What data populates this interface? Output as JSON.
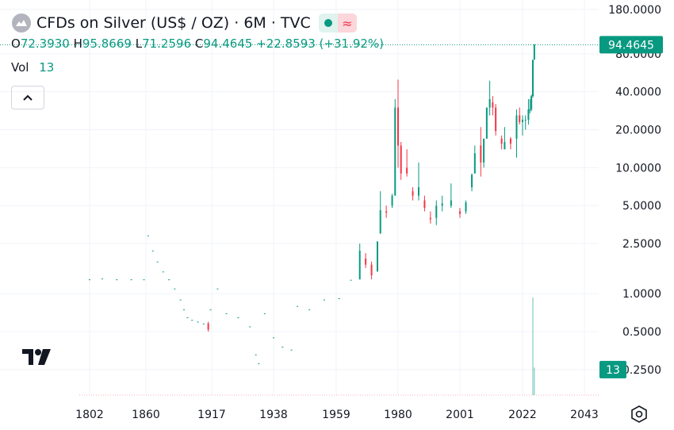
{
  "chart_data": {
    "type": "candlestick",
    "title": "CFDs on Silver (US$ / OZ) · 6M · TVC",
    "legend": {
      "open_label": "O",
      "open": "72.3930",
      "high_label": "H",
      "high": "95.8669",
      "low_label": "L",
      "low": "71.2596",
      "close_label": "C",
      "close": "94.4645",
      "change": "+22.8593 (+31.92%)",
      "volume_label": "Vol"
    },
    "x": [
      1802,
      1815,
      1830,
      1845,
      1858,
      1862,
      1866,
      1870,
      1875,
      1880,
      1885,
      1890,
      1893,
      1896,
      1900,
      1905,
      1910,
      1914,
      1916,
      1919,
      1922,
      1926,
      1930,
      1932,
      1933,
      1935,
      1938,
      1941,
      1944,
      1946,
      1950,
      1955,
      1960,
      1964,
      1967,
      1969,
      1971,
      1973,
      1974,
      1976,
      1978,
      1979,
      1980,
      1981,
      1983,
      1985,
      1987,
      1989,
      1991,
      1993,
      1995,
      1998,
      2001,
      2003,
      2005,
      2006,
      2008,
      2009,
      2010,
      2011,
      2012,
      2013,
      2015,
      2016,
      2018,
      2020,
      2021,
      2022,
      2023,
      2024,
      2024.5,
      2025,
      2025.5,
      2026
    ],
    "open": [
      1.3,
      1.32,
      1.3,
      1.3,
      1.3,
      2.9,
      2.2,
      1.8,
      1.5,
      1.3,
      1.1,
      0.9,
      0.75,
      0.65,
      0.62,
      0.6,
      0.58,
      0.58,
      0.75,
      1.1,
      0.7,
      0.65,
      0.55,
      0.33,
      0.28,
      0.7,
      0.45,
      0.38,
      0.36,
      0.8,
      0.75,
      0.9,
      0.92,
      1.29,
      1.3,
      1.9,
      1.7,
      1.5,
      3,
      4.5,
      5,
      6,
      30,
      15,
      10,
      6.5,
      6,
      5.5,
      4,
      4,
      5,
      5,
      4.5,
      4.5,
      7,
      9,
      15,
      11,
      17,
      30,
      33,
      30,
      17,
      14,
      17,
      17,
      26,
      23,
      24,
      24,
      29,
      29,
      37,
      72.393
    ],
    "high": [
      1.3,
      1.32,
      1.3,
      1.3,
      1.3,
      2.9,
      2.2,
      1.8,
      1.5,
      1.3,
      1.1,
      0.9,
      0.75,
      0.65,
      0.62,
      0.6,
      0.58,
      0.6,
      0.75,
      1.1,
      0.7,
      0.65,
      0.55,
      0.33,
      0.28,
      0.7,
      0.45,
      0.38,
      0.36,
      0.8,
      0.75,
      0.9,
      0.92,
      1.29,
      2.5,
      2.1,
      1.8,
      2.6,
      6.5,
      5,
      6.2,
      35,
      50,
      16,
      14,
      7,
      11,
      6,
      4.5,
      5.5,
      6,
      7.5,
      4.8,
      5.5,
      9,
      15,
      21,
      17,
      30,
      49,
      37,
      32,
      18,
      21,
      17.5,
      29,
      30,
      26,
      26,
      35,
      35,
      38,
      72,
      95.8669
    ],
    "low": [
      1.3,
      1.32,
      1.3,
      1.3,
      1.3,
      2.9,
      2.2,
      1.8,
      1.5,
      1.3,
      1.1,
      0.9,
      0.75,
      0.65,
      0.62,
      0.6,
      0.58,
      0.5,
      0.75,
      1.1,
      0.7,
      0.65,
      0.55,
      0.33,
      0.28,
      0.7,
      0.45,
      0.38,
      0.36,
      0.8,
      0.75,
      0.9,
      0.92,
      1.29,
      1.3,
      1.6,
      1.3,
      1.5,
      3,
      4,
      4.8,
      6,
      10,
      8,
      8.5,
      5.5,
      5.5,
      4.5,
      3.6,
      3.5,
      4.5,
      4.8,
      4,
      4.3,
      6.5,
      9,
      8.5,
      10,
      17,
      26,
      26,
      18,
      14,
      14,
      14,
      12,
      22,
      18,
      20,
      22,
      27,
      28,
      36,
      71.2596
    ],
    "close": [
      1.3,
      1.32,
      1.3,
      1.3,
      1.3,
      2.9,
      2.2,
      1.8,
      1.5,
      1.3,
      1.1,
      0.9,
      0.75,
      0.65,
      0.62,
      0.6,
      0.58,
      0.52,
      0.75,
      1.1,
      0.7,
      0.65,
      0.55,
      0.33,
      0.28,
      0.7,
      0.45,
      0.38,
      0.36,
      0.8,
      0.75,
      0.9,
      0.92,
      1.29,
      2.2,
      1.7,
      1.4,
      2.6,
      4.6,
      4.4,
      6,
      30,
      15,
      9,
      9,
      6,
      7,
      4.8,
      3.9,
      5,
      5.2,
      5.5,
      4.3,
      5.3,
      8.8,
      13,
      11,
      17,
      30,
      35,
      30,
      19.5,
      15.5,
      16,
      15.5,
      26,
      23,
      24,
      24,
      29,
      29,
      37,
      71.6,
      94.4645
    ],
    "volume": [
      null,
      null,
      null,
      null,
      null,
      null,
      null,
      null,
      null,
      null,
      null,
      null,
      null,
      null,
      null,
      null,
      null,
      null,
      null,
      null,
      null,
      null,
      null,
      null,
      null,
      null,
      null,
      null,
      null,
      null,
      null,
      null,
      null,
      null,
      null,
      null,
      null,
      null,
      null,
      null,
      null,
      null,
      null,
      null,
      null,
      null,
      null,
      null,
      null,
      null,
      null,
      null,
      null,
      null,
      null,
      null,
      null,
      null,
      null,
      null,
      null,
      null,
      null,
      null,
      null,
      null,
      null,
      null,
      null,
      null,
      null,
      null,
      46,
      13
    ],
    "up_color": "#089981",
    "down_color": "#f23645",
    "log_scale": true,
    "ylim": [
      0.157,
      214
    ],
    "yticks": [
      {
        "value": 0.25,
        "label": "0.2500"
      },
      {
        "value": 0.5,
        "label": "0.5000"
      },
      {
        "value": 1,
        "label": "1.0000"
      },
      {
        "value": 2.5,
        "label": "2.5000"
      },
      {
        "value": 5,
        "label": "5.0000"
      },
      {
        "value": 10,
        "label": "10.0000"
      },
      {
        "value": 20,
        "label": "20.0000"
      },
      {
        "value": 40,
        "label": "40.0000"
      },
      {
        "value": 80,
        "label": "80.0000"
      },
      {
        "value": 180,
        "label": "180.0000"
      }
    ],
    "xlim": [
      1791,
      2048
    ],
    "xticks": [
      1802,
      1860,
      1917,
      1938,
      1959,
      1980,
      2001,
      2022,
      2043
    ]
  }
}
